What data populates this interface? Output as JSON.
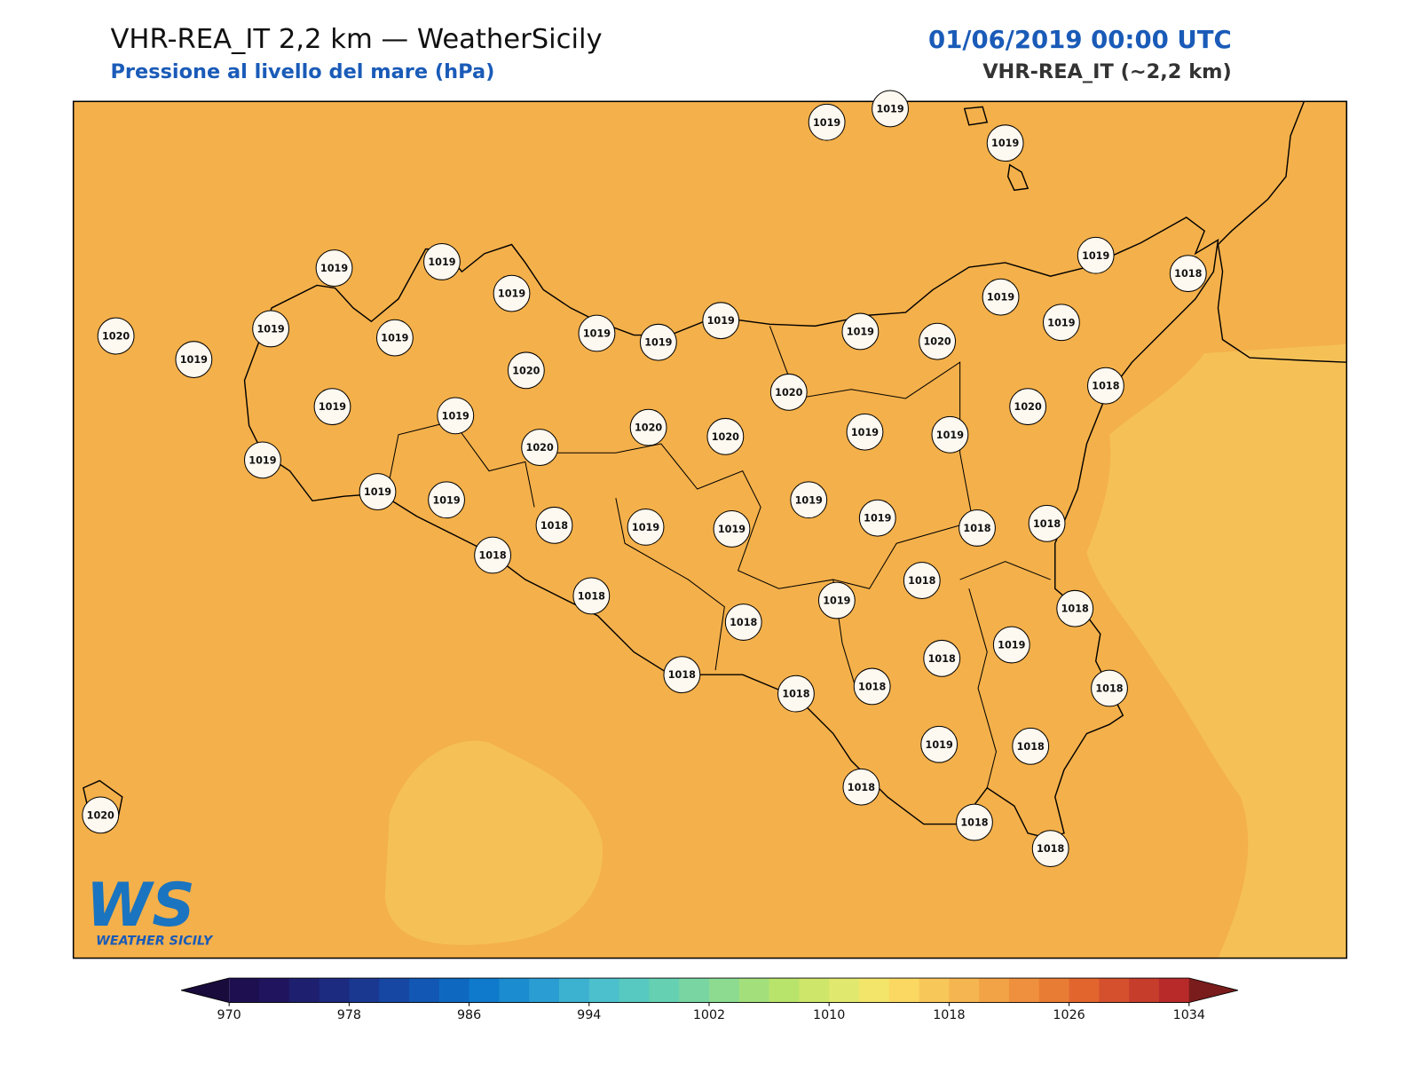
{
  "header": {
    "title": "VHR-REA_IT 2,2 km — WeatherSicily",
    "subtitle": "Pressione al livello del mare (hPa)",
    "datetime": "01/06/2019 00:00 UTC",
    "model": "VHR-REA_IT (~2,2 km)"
  },
  "logo": {
    "mark": "WS",
    "name": "WEATHER SICILY"
  },
  "stations": [
    1019,
    1019,
    1019,
    1019,
    1019,
    1019,
    1019,
    1019,
    1020,
    1019,
    1019,
    1019,
    1019,
    1019,
    1020,
    1019,
    1019,
    1019,
    1018,
    1020,
    1019,
    1019,
    1020,
    1018,
    1020,
    1020,
    1020,
    1020,
    1019,
    1019,
    1019,
    1019,
    1019,
    1019,
    1019,
    1018,
    1019,
    1019,
    1018,
    1018,
    1018,
    1018,
    1018,
    1019,
    1018,
    1018,
    1019,
    1018,
    1018,
    1018,
    1018,
    1018,
    1019,
    1018,
    1018,
    1018,
    1018,
    1020
  ],
  "colorbar": {
    "lim": [
      970,
      1034
    ],
    "ticks": [
      970,
      978,
      986,
      994,
      1002,
      1010,
      1018,
      1026,
      1034
    ],
    "colors": [
      "#1e1050",
      "#20145e",
      "#1e1f6e",
      "#1c2a80",
      "#1a3890",
      "#1647a3",
      "#1257b3",
      "#0f68bf",
      "#0f7acb",
      "#1a8ccf",
      "#2a9dd2",
      "#3cb1d0",
      "#4cc0cc",
      "#58c9c0",
      "#66d0b2",
      "#79d6a2",
      "#8cdb91",
      "#a3e07c",
      "#b9e46c",
      "#cee66a",
      "#e1e86e",
      "#f3e56a",
      "#fad862",
      "#f8c75a",
      "#f5b550",
      "#f1a345",
      "#ee903d",
      "#e97c34",
      "#e2652e",
      "#d5502c",
      "#c63d2c",
      "#b82a2a"
    ],
    "under": "#1a0b3d",
    "over": "#7a1c1c"
  }
}
